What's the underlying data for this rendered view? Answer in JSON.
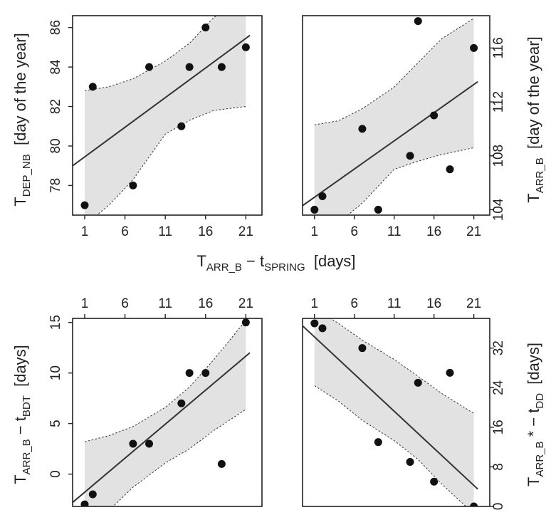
{
  "chart_data": [
    {
      "type": "scatter",
      "panel": "top-left",
      "x": [
        1,
        2,
        7,
        9,
        13,
        14,
        16,
        18,
        21
      ],
      "y": [
        77,
        83,
        78,
        84,
        81,
        84,
        86,
        84,
        85
      ],
      "xlim": [
        -0.5,
        23
      ],
      "ylim": [
        76.5,
        86.6
      ],
      "xticks": [
        "1",
        "6",
        "11",
        "16",
        "21"
      ],
      "yticks": [
        "78",
        "80",
        "82",
        "84",
        "86"
      ],
      "fit": {
        "x0": -0.5,
        "y0": 79.0,
        "x1": 21.5,
        "y1": 85.6
      },
      "ci_upper": [
        [
          1,
          82.8
        ],
        [
          4,
          83.0
        ],
        [
          7,
          83.4
        ],
        [
          11,
          84.3
        ],
        [
          14,
          85.2
        ],
        [
          17,
          86.5
        ],
        [
          21,
          87.6
        ]
      ],
      "ci_lower": [
        [
          1,
          76.0
        ],
        [
          4,
          77.0
        ],
        [
          7,
          78.3
        ],
        [
          11,
          80.6
        ],
        [
          14,
          81.3
        ],
        [
          17,
          81.8
        ],
        [
          21,
          82.0
        ]
      ]
    },
    {
      "type": "scatter",
      "panel": "top-right",
      "x": [
        1,
        2,
        7,
        9,
        13,
        14,
        16,
        18,
        21
      ],
      "y": [
        104,
        105,
        110,
        104,
        108,
        118,
        111,
        107,
        116
      ],
      "xlim": [
        -0.5,
        23
      ],
      "ylim": [
        103.6,
        118.4
      ],
      "xticks": [
        "1",
        "6",
        "11",
        "16",
        "21"
      ],
      "yticks": [
        "104",
        "108",
        "112",
        "116"
      ],
      "fit": {
        "x0": -0.5,
        "y0": 104.3,
        "x1": 21.5,
        "y1": 113.5
      },
      "ci_upper": [
        [
          1,
          110.3
        ],
        [
          4,
          110.6
        ],
        [
          7,
          111.5
        ],
        [
          11,
          113.1
        ],
        [
          14,
          114.9
        ],
        [
          17,
          116.7
        ],
        [
          21,
          118.2
        ]
      ],
      "ci_lower": [
        [
          1,
          102.0
        ],
        [
          4,
          103.0
        ],
        [
          7,
          104.5
        ],
        [
          11,
          107.0
        ],
        [
          14,
          107.6
        ],
        [
          17,
          108.1
        ],
        [
          21,
          108.6
        ]
      ]
    },
    {
      "type": "scatter",
      "panel": "bottom-left",
      "x": [
        1,
        2,
        7,
        9,
        13,
        14,
        16,
        18,
        21
      ],
      "y": [
        -3,
        -2,
        3,
        3,
        7,
        10,
        10,
        1,
        15
      ],
      "xlim": [
        -0.5,
        23
      ],
      "ylim": [
        -3.2,
        15.4
      ],
      "xticks": [
        "1",
        "6",
        "11",
        "16",
        "21"
      ],
      "yticks": [
        "0",
        "5",
        "10",
        "15"
      ],
      "fit": {
        "x0": -0.5,
        "y0": -2.8,
        "x1": 21.5,
        "y1": 12.0
      },
      "ci_upper": [
        [
          1,
          3.2
        ],
        [
          4,
          3.8
        ],
        [
          7,
          4.7
        ],
        [
          11,
          6.6
        ],
        [
          14,
          8.6
        ],
        [
          17,
          11.3
        ],
        [
          21,
          15.2
        ]
      ],
      "ci_lower": [
        [
          1,
          -5.0
        ],
        [
          4,
          -3.6
        ],
        [
          7,
          -1.3
        ],
        [
          11,
          1.1
        ],
        [
          14,
          2.5
        ],
        [
          17,
          4.3
        ],
        [
          21,
          6.4
        ]
      ]
    },
    {
      "type": "scatter",
      "panel": "bottom-right",
      "x": [
        1,
        2,
        7,
        9,
        13,
        14,
        16,
        18,
        21
      ],
      "y": [
        37,
        36,
        32,
        13,
        9,
        25,
        5,
        27,
        0
      ],
      "xlim": [
        -0.5,
        23
      ],
      "ylim": [
        0,
        38
      ],
      "xticks": [
        "1",
        "6",
        "11",
        "16",
        "21"
      ],
      "yticks": [
        "0",
        "8",
        "16",
        "24",
        "32"
      ],
      "fit": {
        "x0": -0.5,
        "y0": 36.5,
        "x1": 21.5,
        "y1": 3.5
      },
      "ci_upper": [
        [
          1,
          40.0
        ],
        [
          4,
          37.0
        ],
        [
          7,
          33.6
        ],
        [
          11,
          29.7
        ],
        [
          14,
          26.3
        ],
        [
          17,
          22.8
        ],
        [
          21,
          18.8
        ]
      ],
      "ci_lower": [
        [
          1,
          24.4
        ],
        [
          4,
          21.3
        ],
        [
          7,
          17.4
        ],
        [
          11,
          13.3
        ],
        [
          14,
          9.5
        ],
        [
          17,
          4.5
        ],
        [
          21,
          -1.5
        ]
      ]
    }
  ],
  "labels": {
    "top_left_y": {
      "main": "T",
      "sub": "DEP_NB",
      "rest": "  [day of the year]"
    },
    "top_right_y": {
      "main": "T",
      "sub": "ARR_B",
      "rest": "  [day of the year]"
    },
    "shared_x": {
      "main1": "T",
      "sub1": "ARR_B",
      "mid": " − t",
      "sub2": "SPRING",
      "rest": "  [days]"
    },
    "bottom_left_y": {
      "main1": "T",
      "sub1": "ARR_B",
      "mid": " − t",
      "sub2": "BDT",
      "rest": "  [days]"
    },
    "bottom_right_y": {
      "main1": "T",
      "sub1": "ARR_B",
      "mid": " * − t",
      "sub2": "DD",
      "rest": "  [days]"
    }
  }
}
